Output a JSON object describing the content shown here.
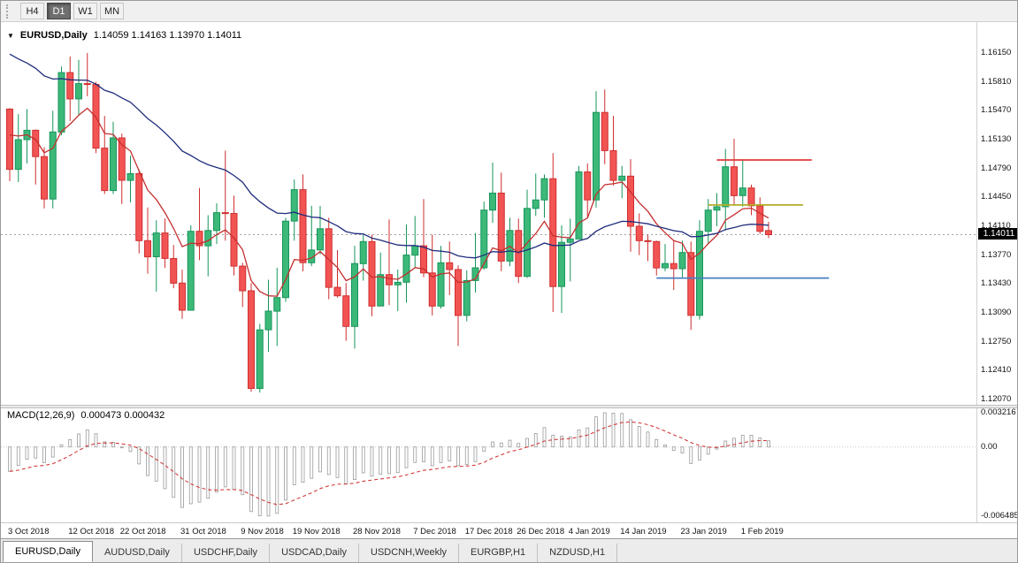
{
  "toolbar": {
    "periods": [
      {
        "label": "H4",
        "active": false
      },
      {
        "label": "D1",
        "active": true
      },
      {
        "label": "W1",
        "active": false
      },
      {
        "label": "MN",
        "active": false
      }
    ]
  },
  "main_chart": {
    "symbol_label": "EURUSD,Daily",
    "ohlc_text": "1.14059 1.14163 1.13970 1.14011",
    "current_price": "1.14011"
  },
  "macd_panel": {
    "label": "MACD(12,26,9)",
    "values_text": "0.000473 0.000432"
  },
  "tabs": [
    {
      "label": "EURUSD,Daily",
      "active": true
    },
    {
      "label": "AUDUSD,Daily",
      "active": false
    },
    {
      "label": "USDCHF,Daily",
      "active": false
    },
    {
      "label": "USDCAD,Daily",
      "active": false
    },
    {
      "label": "USDCNH,Weekly",
      "active": false
    },
    {
      "label": "EURGBP,H1",
      "active": false
    },
    {
      "label": "NZDUSD,H1",
      "active": false
    }
  ],
  "chart_data": {
    "type": "candlestick",
    "symbol": "EURUSD",
    "timeframe": "Daily",
    "title": "EURUSD,Daily 1.14059 1.14163 1.13970 1.14011",
    "ohlc_order": [
      "open",
      "high",
      "low",
      "close"
    ],
    "last_quote": {
      "open": 1.14059,
      "high": 1.14163,
      "low": 1.1397,
      "close": 1.14011
    },
    "candles": [
      [
        1.1549,
        1.155,
        1.1464,
        1.1478
      ],
      [
        1.1478,
        1.1543,
        1.1463,
        1.1513
      ],
      [
        1.1513,
        1.1549,
        1.1485,
        1.1524
      ],
      [
        1.1524,
        1.1525,
        1.146,
        1.1493
      ],
      [
        1.1493,
        1.1504,
        1.1432,
        1.1443
      ],
      [
        1.1443,
        1.1547,
        1.1432,
        1.1522
      ],
      [
        1.1522,
        1.1599,
        1.1518,
        1.1592
      ],
      [
        1.1592,
        1.1611,
        1.1535,
        1.1561
      ],
      [
        1.1561,
        1.1607,
        1.1541,
        1.1579
      ],
      [
        1.1579,
        1.1615,
        1.1564,
        1.1578
      ],
      [
        1.1578,
        1.1581,
        1.1497,
        1.1503
      ],
      [
        1.1503,
        1.1541,
        1.1449,
        1.1453
      ],
      [
        1.1453,
        1.1534,
        1.1449,
        1.1515
      ],
      [
        1.1515,
        1.152,
        1.1437,
        1.1465
      ],
      [
        1.1465,
        1.1494,
        1.1439,
        1.1473
      ],
      [
        1.1473,
        1.1478,
        1.1379,
        1.1394
      ],
      [
        1.1394,
        1.1433,
        1.1355,
        1.1375
      ],
      [
        1.1375,
        1.1418,
        1.1334,
        1.1403
      ],
      [
        1.1403,
        1.142,
        1.1362,
        1.1373
      ],
      [
        1.1373,
        1.1389,
        1.1338,
        1.1344
      ],
      [
        1.1344,
        1.136,
        1.1302,
        1.1312
      ],
      [
        1.1312,
        1.1412,
        1.1312,
        1.1405
      ],
      [
        1.1405,
        1.1456,
        1.1371,
        1.1388
      ],
      [
        1.1388,
        1.1424,
        1.1352,
        1.1406
      ],
      [
        1.1406,
        1.1438,
        1.139,
        1.1427
      ],
      [
        1.1427,
        1.15,
        1.1394,
        1.1426
      ],
      [
        1.1426,
        1.1447,
        1.1353,
        1.1364
      ],
      [
        1.1364,
        1.1368,
        1.1316,
        1.1335
      ],
      [
        1.1335,
        1.1344,
        1.1216,
        1.122
      ],
      [
        1.122,
        1.1296,
        1.1215,
        1.1289
      ],
      [
        1.1289,
        1.1348,
        1.1263,
        1.1311
      ],
      [
        1.1311,
        1.1362,
        1.127,
        1.1327
      ],
      [
        1.1327,
        1.1421,
        1.1322,
        1.1417
      ],
      [
        1.1417,
        1.1466,
        1.1394,
        1.1454
      ],
      [
        1.1454,
        1.1472,
        1.1358,
        1.1368
      ],
      [
        1.1368,
        1.1435,
        1.1364,
        1.1383
      ],
      [
        1.1383,
        1.1435,
        1.1378,
        1.1408
      ],
      [
        1.1408,
        1.1421,
        1.1325,
        1.1339
      ],
      [
        1.1339,
        1.1383,
        1.1327,
        1.1329
      ],
      [
        1.1329,
        1.1344,
        1.1276,
        1.1293
      ],
      [
        1.1293,
        1.1388,
        1.1267,
        1.1367
      ],
      [
        1.1367,
        1.1401,
        1.1347,
        1.1393
      ],
      [
        1.1393,
        1.1401,
        1.1305,
        1.1317
      ],
      [
        1.1317,
        1.138,
        1.1317,
        1.1354
      ],
      [
        1.1354,
        1.1419,
        1.1318,
        1.1342
      ],
      [
        1.1342,
        1.136,
        1.1311,
        1.1345
      ],
      [
        1.1345,
        1.1413,
        1.1321,
        1.1377
      ],
      [
        1.1377,
        1.1423,
        1.1362,
        1.1388
      ],
      [
        1.1388,
        1.1443,
        1.1351,
        1.1356
      ],
      [
        1.1356,
        1.1401,
        1.1306,
        1.1317
      ],
      [
        1.1317,
        1.1388,
        1.1314,
        1.1368
      ],
      [
        1.1368,
        1.1393,
        1.133,
        1.136
      ],
      [
        1.136,
        1.1365,
        1.127,
        1.1306
      ],
      [
        1.1306,
        1.1359,
        1.1299,
        1.1347
      ],
      [
        1.1347,
        1.1403,
        1.1333,
        1.1362
      ],
      [
        1.1362,
        1.144,
        1.136,
        1.143
      ],
      [
        1.143,
        1.1486,
        1.1415,
        1.145
      ],
      [
        1.145,
        1.1474,
        1.1358,
        1.137
      ],
      [
        1.137,
        1.1421,
        1.1364,
        1.1406
      ],
      [
        1.1406,
        1.142,
        1.1344,
        1.1352
      ],
      [
        1.1352,
        1.1454,
        1.135,
        1.1432
      ],
      [
        1.1432,
        1.1473,
        1.1423,
        1.1442
      ],
      [
        1.1442,
        1.1472,
        1.1421,
        1.1467
      ],
      [
        1.1467,
        1.1497,
        1.131,
        1.134
      ],
      [
        1.134,
        1.1412,
        1.1309,
        1.1392
      ],
      [
        1.1392,
        1.142,
        1.1346,
        1.1396
      ],
      [
        1.1396,
        1.1482,
        1.1396,
        1.1475
      ],
      [
        1.1475,
        1.1485,
        1.1422,
        1.1442
      ],
      [
        1.1442,
        1.157,
        1.1433,
        1.1545
      ],
      [
        1.1545,
        1.1572,
        1.1484,
        1.15
      ],
      [
        1.15,
        1.1541,
        1.1459,
        1.1465
      ],
      [
        1.1465,
        1.1482,
        1.1444,
        1.147
      ],
      [
        1.147,
        1.149,
        1.1381,
        1.1411
      ],
      [
        1.1411,
        1.1426,
        1.1377,
        1.1394
      ],
      [
        1.1394,
        1.1401,
        1.137,
        1.1393
      ],
      [
        1.1393,
        1.1394,
        1.1353,
        1.1362
      ],
      [
        1.1362,
        1.139,
        1.1358,
        1.1367
      ],
      [
        1.1367,
        1.1394,
        1.1336,
        1.1361
      ],
      [
        1.1361,
        1.1394,
        1.1351,
        1.138
      ],
      [
        1.138,
        1.1393,
        1.1289,
        1.1306
      ],
      [
        1.1306,
        1.1418,
        1.1301,
        1.1405
      ],
      [
        1.1405,
        1.1443,
        1.139,
        1.143
      ],
      [
        1.143,
        1.145,
        1.1411,
        1.1434
      ],
      [
        1.1434,
        1.1502,
        1.1406,
        1.1481
      ],
      [
        1.1481,
        1.1514,
        1.1436,
        1.1447
      ],
      [
        1.1447,
        1.149,
        1.1434,
        1.1456
      ],
      [
        1.1456,
        1.146,
        1.1424,
        1.1435
      ],
      [
        1.1435,
        1.1445,
        1.1402,
        1.1405
      ],
      [
        1.14059,
        1.14163,
        1.1397,
        1.14011
      ]
    ],
    "main": {
      "ylim": {
        "max": 1.16514,
        "min": 1.12007
      },
      "price_ticks": [
        "1.16150",
        "1.15810",
        "1.15470",
        "1.15130",
        "1.14790",
        "1.14450",
        "1.14110",
        "1.13770",
        "1.13430",
        "1.13090",
        "1.12750",
        "1.12410",
        "1.12070"
      ],
      "up_color": "#3cb878",
      "up_border": "#17955a",
      "down_color": "#f25454",
      "down_border": "#cf2f2f",
      "current_price_line_color": "#a0a0a0"
    },
    "overlays": [
      {
        "name": "fast-ma-line",
        "type": "ema",
        "period": 8,
        "color": "#c52f2f",
        "start_value": 1.153
      },
      {
        "name": "slow-ma-line",
        "type": "ema",
        "period": 34,
        "color": "#1f2d7c",
        "start_value": 1.1622
      }
    ],
    "hlines": [
      {
        "name": "resistance-line",
        "color": "#e23a3a",
        "price": 1.1489,
        "from_index": 82,
        "to_index": 93
      },
      {
        "name": "mid-resistance-line",
        "color": "#b3ae2b",
        "price": 1.1436,
        "from_index": 81,
        "to_index": 92
      },
      {
        "name": "support-line",
        "color": "#4a80c0",
        "price": 1.135,
        "from_index": 75,
        "to_index": 95
      }
    ],
    "date_ticks": [
      {
        "index": 0,
        "label": "3 Oct 2018"
      },
      {
        "index": 7,
        "label": "12 Oct 2018"
      },
      {
        "index": 13,
        "label": "22 Oct 2018"
      },
      {
        "index": 20,
        "label": "31 Oct 2018"
      },
      {
        "index": 27,
        "label": "9 Nov 2018"
      },
      {
        "index": 33,
        "label": "19 Nov 2018"
      },
      {
        "index": 40,
        "label": "28 Nov 2018"
      },
      {
        "index": 47,
        "label": "7 Dec 2018"
      },
      {
        "index": 53,
        "label": "17 Dec 2018"
      },
      {
        "index": 59,
        "label": "26 Dec 2018"
      },
      {
        "index": 65,
        "label": "4 Jan 2019"
      },
      {
        "index": 71,
        "label": "14 Jan 2019"
      },
      {
        "index": 78,
        "label": "23 Jan 2019"
      },
      {
        "index": 85,
        "label": "1 Feb 2019"
      }
    ],
    "macd": {
      "fast": 12,
      "slow": 26,
      "signal": 9,
      "main_value": 0.000473,
      "signal_value": 0.000432,
      "ylim": {
        "max": 0.00363,
        "min": -0.00708
      },
      "scale_max": 0.003216,
      "scale_min": -0.006485,
      "seed_offset": 0.0018,
      "axis_labels": [
        {
          "label": "0.003216",
          "value": 0.003216
        },
        {
          "label": "0.00",
          "value": 0
        },
        {
          "label": "-0.006485",
          "value": -0.006485
        }
      ],
      "histogram_color": "#9a9a9a",
      "signal_color": "#d23b3b"
    }
  }
}
